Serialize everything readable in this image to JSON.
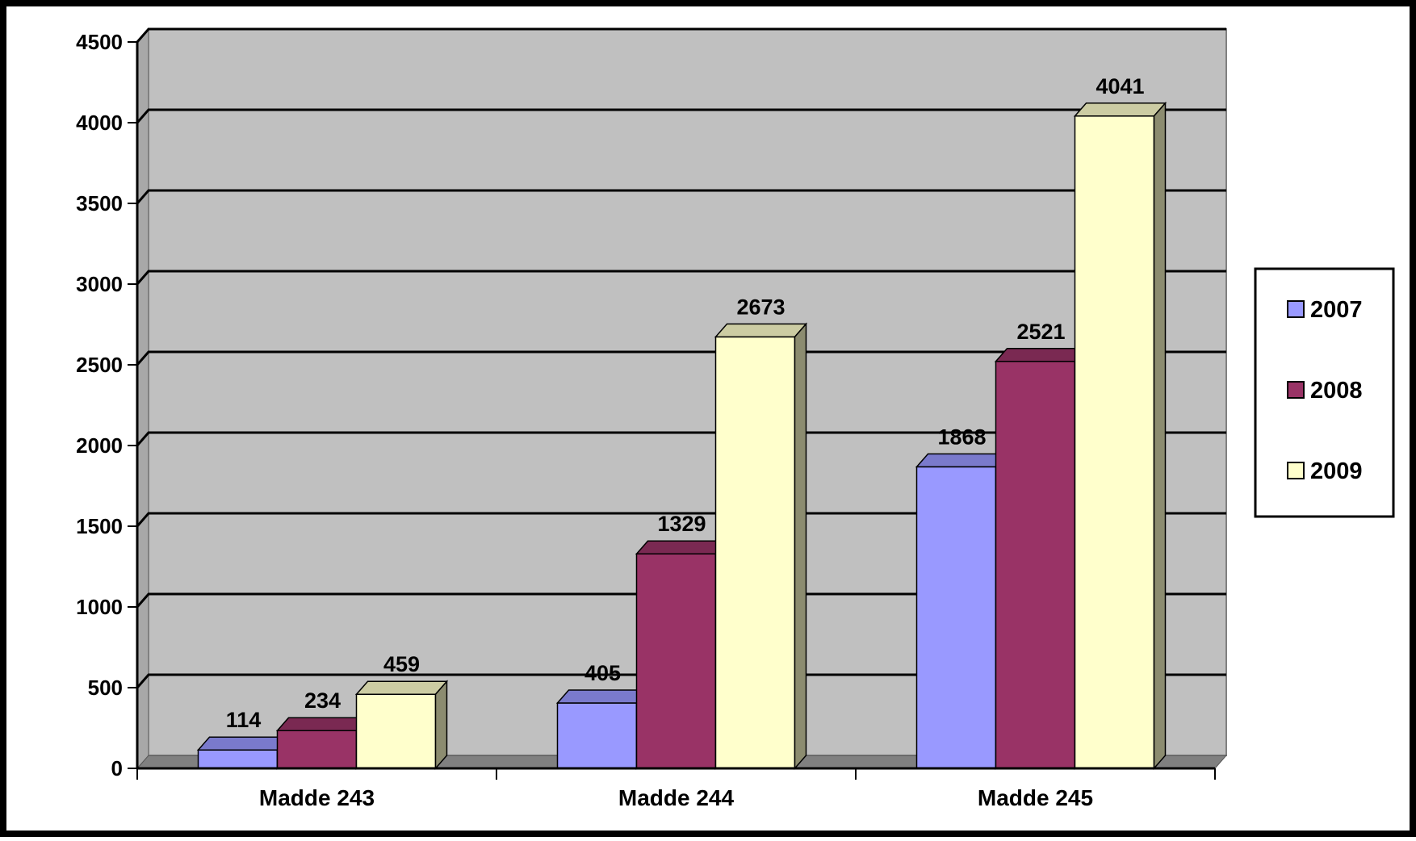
{
  "chart_data": {
    "type": "bar",
    "categories": [
      "Madde 243",
      "Madde 244",
      "Madde 245"
    ],
    "series": [
      {
        "name": "2007",
        "values": [
          114,
          405,
          1868
        ],
        "color": "#9999ff"
      },
      {
        "name": "2008",
        "values": [
          234,
          1329,
          2521
        ],
        "color": "#993366"
      },
      {
        "name": "2009",
        "values": [
          459,
          2673,
          4041
        ],
        "color": "#ffffcc"
      }
    ],
    "ylim": [
      0,
      4500
    ],
    "yticks": [
      0,
      500,
      1000,
      1500,
      2000,
      2500,
      3000,
      3500,
      4000,
      4500
    ],
    "grid": true,
    "legend": "right",
    "plot_background": "#c0c0c0",
    "data_labels": true
  }
}
